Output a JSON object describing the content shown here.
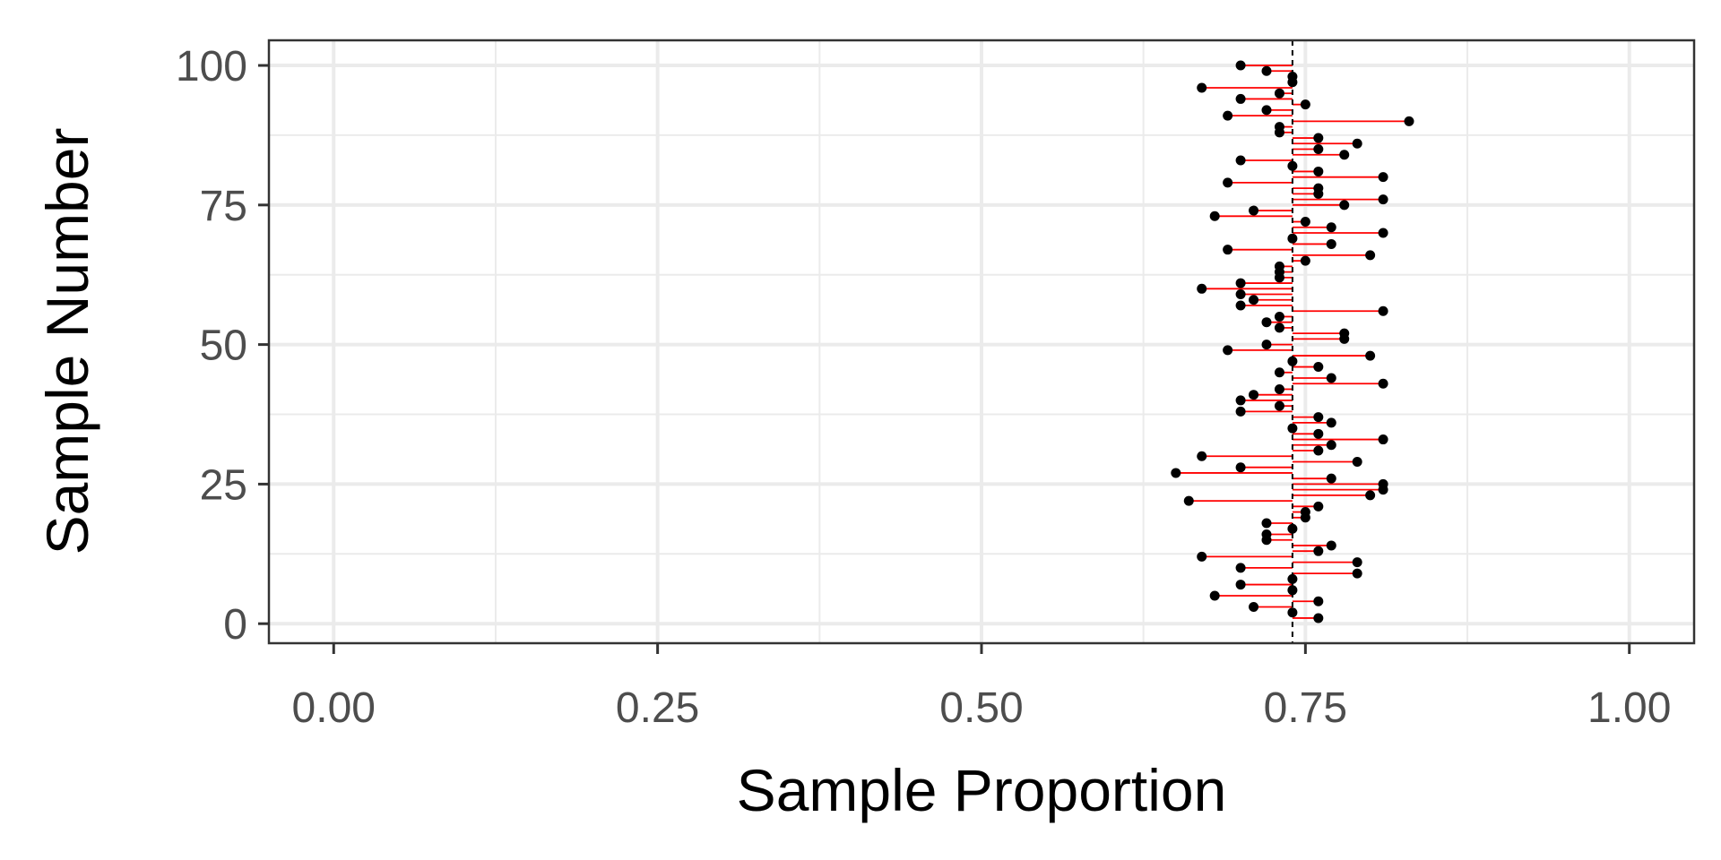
{
  "chart_data": {
    "type": "scatter",
    "xlabel": "Sample Proportion",
    "ylabel": "Sample Number",
    "xlim": [
      -0.05,
      1.05
    ],
    "ylim": [
      -3.5,
      104.5
    ],
    "x_ticks": [
      0.0,
      0.25,
      0.5,
      0.75,
      1.0
    ],
    "x_tick_labels": [
      "0.00",
      "0.25",
      "0.50",
      "0.75",
      "1.00"
    ],
    "y_ticks": [
      0,
      25,
      50,
      75,
      100
    ],
    "y_tick_labels": [
      "0",
      "25",
      "50",
      "75",
      "100"
    ],
    "grid": true,
    "reference_line": {
      "x": 0.74,
      "style": "dashed",
      "color": "#000000"
    },
    "segment_color": "#ff0000",
    "point_color": "#000000",
    "points": [
      {
        "x": 0.76,
        "y": 1
      },
      {
        "x": 0.74,
        "y": 2
      },
      {
        "x": 0.71,
        "y": 3
      },
      {
        "x": 0.76,
        "y": 4
      },
      {
        "x": 0.68,
        "y": 5
      },
      {
        "x": 0.74,
        "y": 6
      },
      {
        "x": 0.7,
        "y": 7
      },
      {
        "x": 0.74,
        "y": 8
      },
      {
        "x": 0.79,
        "y": 9
      },
      {
        "x": 0.7,
        "y": 10
      },
      {
        "x": 0.79,
        "y": 11
      },
      {
        "x": 0.67,
        "y": 12
      },
      {
        "x": 0.76,
        "y": 13
      },
      {
        "x": 0.77,
        "y": 14
      },
      {
        "x": 0.72,
        "y": 15
      },
      {
        "x": 0.72,
        "y": 16
      },
      {
        "x": 0.74,
        "y": 17
      },
      {
        "x": 0.72,
        "y": 18
      },
      {
        "x": 0.75,
        "y": 19
      },
      {
        "x": 0.75,
        "y": 20
      },
      {
        "x": 0.76,
        "y": 21
      },
      {
        "x": 0.66,
        "y": 22
      },
      {
        "x": 0.8,
        "y": 23
      },
      {
        "x": 0.81,
        "y": 24
      },
      {
        "x": 0.81,
        "y": 25
      },
      {
        "x": 0.77,
        "y": 26
      },
      {
        "x": 0.65,
        "y": 27
      },
      {
        "x": 0.7,
        "y": 28
      },
      {
        "x": 0.79,
        "y": 29
      },
      {
        "x": 0.67,
        "y": 30
      },
      {
        "x": 0.76,
        "y": 31
      },
      {
        "x": 0.77,
        "y": 32
      },
      {
        "x": 0.81,
        "y": 33
      },
      {
        "x": 0.76,
        "y": 34
      },
      {
        "x": 0.74,
        "y": 35
      },
      {
        "x": 0.77,
        "y": 36
      },
      {
        "x": 0.76,
        "y": 37
      },
      {
        "x": 0.7,
        "y": 38
      },
      {
        "x": 0.73,
        "y": 39
      },
      {
        "x": 0.7,
        "y": 40
      },
      {
        "x": 0.71,
        "y": 41
      },
      {
        "x": 0.73,
        "y": 42
      },
      {
        "x": 0.81,
        "y": 43
      },
      {
        "x": 0.77,
        "y": 44
      },
      {
        "x": 0.73,
        "y": 45
      },
      {
        "x": 0.76,
        "y": 46
      },
      {
        "x": 0.74,
        "y": 47
      },
      {
        "x": 0.8,
        "y": 48
      },
      {
        "x": 0.69,
        "y": 49
      },
      {
        "x": 0.72,
        "y": 50
      },
      {
        "x": 0.78,
        "y": 51
      },
      {
        "x": 0.78,
        "y": 52
      },
      {
        "x": 0.73,
        "y": 53
      },
      {
        "x": 0.72,
        "y": 54
      },
      {
        "x": 0.73,
        "y": 55
      },
      {
        "x": 0.81,
        "y": 56
      },
      {
        "x": 0.7,
        "y": 57
      },
      {
        "x": 0.71,
        "y": 58
      },
      {
        "x": 0.7,
        "y": 59
      },
      {
        "x": 0.67,
        "y": 60
      },
      {
        "x": 0.7,
        "y": 61
      },
      {
        "x": 0.73,
        "y": 62
      },
      {
        "x": 0.73,
        "y": 63
      },
      {
        "x": 0.73,
        "y": 64
      },
      {
        "x": 0.75,
        "y": 65
      },
      {
        "x": 0.8,
        "y": 66
      },
      {
        "x": 0.69,
        "y": 67
      },
      {
        "x": 0.77,
        "y": 68
      },
      {
        "x": 0.74,
        "y": 69
      },
      {
        "x": 0.81,
        "y": 70
      },
      {
        "x": 0.77,
        "y": 71
      },
      {
        "x": 0.75,
        "y": 72
      },
      {
        "x": 0.68,
        "y": 73
      },
      {
        "x": 0.71,
        "y": 74
      },
      {
        "x": 0.78,
        "y": 75
      },
      {
        "x": 0.81,
        "y": 76
      },
      {
        "x": 0.76,
        "y": 77
      },
      {
        "x": 0.76,
        "y": 78
      },
      {
        "x": 0.69,
        "y": 79
      },
      {
        "x": 0.81,
        "y": 80
      },
      {
        "x": 0.76,
        "y": 81
      },
      {
        "x": 0.74,
        "y": 82
      },
      {
        "x": 0.7,
        "y": 83
      },
      {
        "x": 0.78,
        "y": 84
      },
      {
        "x": 0.76,
        "y": 85
      },
      {
        "x": 0.79,
        "y": 86
      },
      {
        "x": 0.76,
        "y": 87
      },
      {
        "x": 0.73,
        "y": 88
      },
      {
        "x": 0.73,
        "y": 89
      },
      {
        "x": 0.83,
        "y": 90
      },
      {
        "x": 0.69,
        "y": 91
      },
      {
        "x": 0.72,
        "y": 92
      },
      {
        "x": 0.75,
        "y": 93
      },
      {
        "x": 0.7,
        "y": 94
      },
      {
        "x": 0.73,
        "y": 95
      },
      {
        "x": 0.67,
        "y": 96
      },
      {
        "x": 0.74,
        "y": 97
      },
      {
        "x": 0.74,
        "y": 98
      },
      {
        "x": 0.72,
        "y": 99
      },
      {
        "x": 0.7,
        "y": 100
      }
    ]
  }
}
